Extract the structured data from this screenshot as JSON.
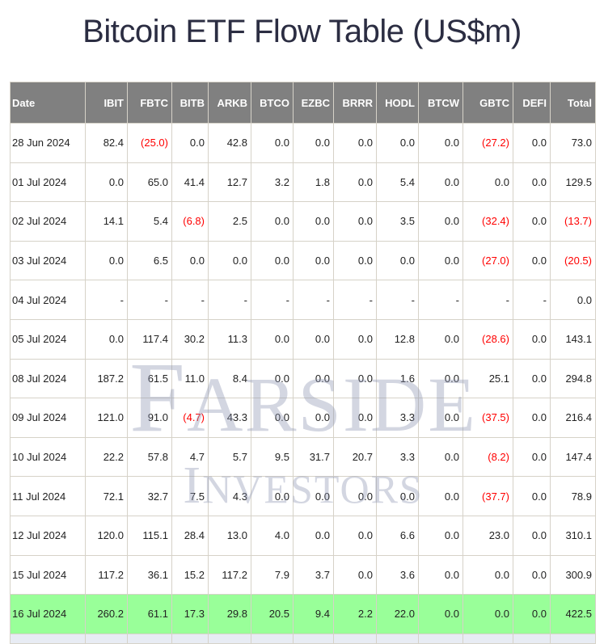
{
  "page": {
    "title": "Bitcoin ETF Flow Table (US$m)"
  },
  "watermark": {
    "line1_first": "F",
    "line1_rest": "ARSIDE",
    "line2_first": "I",
    "line2_rest": "NVESTORS"
  },
  "colors": {
    "header_bg": "#808080",
    "header_text": "#ffffff",
    "negative": "#ff0000",
    "highlight_row": "#99ff99",
    "grid": "#d6d2c8"
  },
  "table": {
    "columns": [
      "Date",
      "IBIT",
      "FBTC",
      "BITB",
      "ARKB",
      "BTCO",
      "EZBC",
      "BRRR",
      "HODL",
      "BTCW",
      "GBTC",
      "DEFI",
      "Total"
    ],
    "rows": [
      {
        "cells": [
          "28 Jun 2024",
          "82.4",
          "(25.0)",
          "0.0",
          "42.8",
          "0.0",
          "0.0",
          "0.0",
          "0.0",
          "0.0",
          "(27.2)",
          "0.0",
          "73.0"
        ]
      },
      {
        "cells": [
          "01 Jul 2024",
          "0.0",
          "65.0",
          "41.4",
          "12.7",
          "3.2",
          "1.8",
          "0.0",
          "5.4",
          "0.0",
          "0.0",
          "0.0",
          "129.5"
        ]
      },
      {
        "cells": [
          "02 Jul 2024",
          "14.1",
          "5.4",
          "(6.8)",
          "2.5",
          "0.0",
          "0.0",
          "0.0",
          "3.5",
          "0.0",
          "(32.4)",
          "0.0",
          "(13.7)"
        ]
      },
      {
        "cells": [
          "03 Jul 2024",
          "0.0",
          "6.5",
          "0.0",
          "0.0",
          "0.0",
          "0.0",
          "0.0",
          "0.0",
          "0.0",
          "(27.0)",
          "0.0",
          "(20.5)"
        ]
      },
      {
        "cells": [
          "04 Jul 2024",
          "-",
          "-",
          "-",
          "-",
          "-",
          "-",
          "-",
          "-",
          "-",
          "-",
          "-",
          "0.0"
        ]
      },
      {
        "cells": [
          "05 Jul 2024",
          "0.0",
          "117.4",
          "30.2",
          "11.3",
          "0.0",
          "0.0",
          "0.0",
          "12.8",
          "0.0",
          "(28.6)",
          "0.0",
          "143.1"
        ]
      },
      {
        "cells": [
          "08 Jul 2024",
          "187.2",
          "61.5",
          "11.0",
          "8.4",
          "0.0",
          "0.0",
          "0.0",
          "1.6",
          "0.0",
          "25.1",
          "0.0",
          "294.8"
        ]
      },
      {
        "cells": [
          "09 Jul 2024",
          "121.0",
          "91.0",
          "(4.7)",
          "43.3",
          "0.0",
          "0.0",
          "0.0",
          "3.3",
          "0.0",
          "(37.5)",
          "0.0",
          "216.4"
        ]
      },
      {
        "cells": [
          "10 Jul 2024",
          "22.2",
          "57.8",
          "4.7",
          "5.7",
          "9.5",
          "31.7",
          "20.7",
          "3.3",
          "0.0",
          "(8.2)",
          "0.0",
          "147.4"
        ]
      },
      {
        "cells": [
          "11 Jul 2024",
          "72.1",
          "32.7",
          "7.5",
          "4.3",
          "0.0",
          "0.0",
          "0.0",
          "0.0",
          "0.0",
          "(37.7)",
          "0.0",
          "78.9"
        ]
      },
      {
        "cells": [
          "12 Jul 2024",
          "120.0",
          "115.1",
          "28.4",
          "13.0",
          "4.0",
          "0.0",
          "0.0",
          "6.6",
          "0.0",
          "23.0",
          "0.0",
          "310.1"
        ]
      },
      {
        "cells": [
          "15 Jul 2024",
          "117.2",
          "36.1",
          "15.2",
          "117.2",
          "7.9",
          "3.7",
          "0.0",
          "3.6",
          "0.0",
          "0.0",
          "0.0",
          "300.9"
        ]
      },
      {
        "cells": [
          "16 Jul 2024",
          "260.2",
          "61.1",
          "17.3",
          "29.8",
          "20.5",
          "9.4",
          "2.2",
          "22.0",
          "0.0",
          "0.0",
          "0.0",
          "422.5"
        ],
        "highlight": true
      }
    ]
  }
}
